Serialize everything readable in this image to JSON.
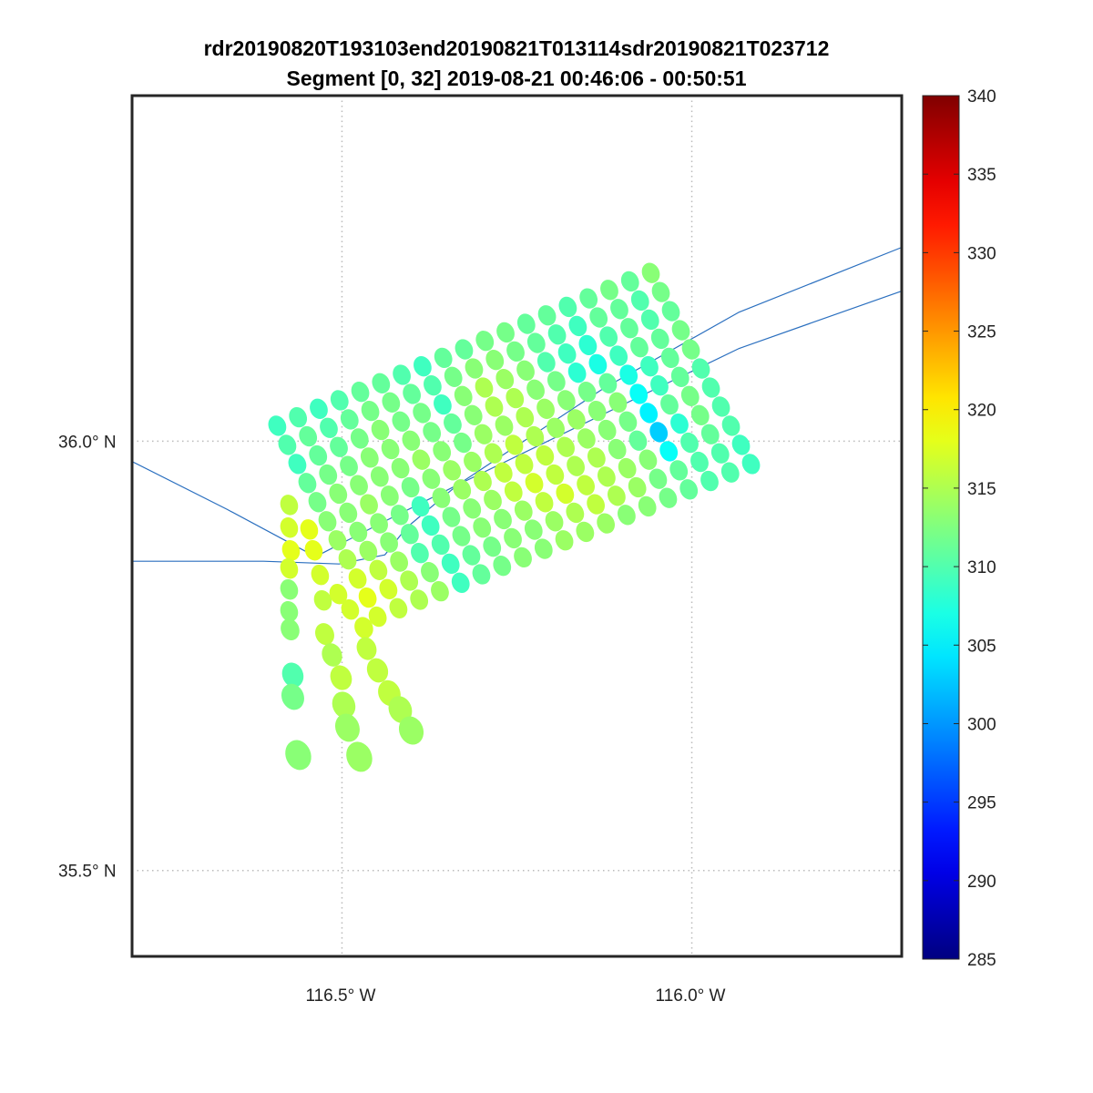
{
  "chart_data": {
    "type": "scatter",
    "title": [
      "rdr20190820T193103end20190821T013114sdr20190821T023712",
      "Segment [0, 32] 2019-08-21 00:46:06 - 00:50:51"
    ],
    "xlabel": "",
    "ylabel": "",
    "xlim": [
      -116.8,
      -115.7
    ],
    "ylim": [
      35.4,
      36.4025
    ],
    "grid": true,
    "x_ticks": [
      {
        "value": -116.5,
        "label": "116.5° W"
      },
      {
        "value": -116.0,
        "label": "116.0° W"
      }
    ],
    "y_ticks": [
      {
        "value": 36.0,
        "label": "36.0° N"
      },
      {
        "value": 35.5,
        "label": "35.5° N"
      }
    ],
    "colorbar": {
      "colormap": "jet",
      "range": [
        285,
        340
      ],
      "ticks": [
        "285",
        "290",
        "295",
        "300",
        "305",
        "310",
        "315",
        "320",
        "325",
        "330",
        "335",
        "340"
      ]
    },
    "footprint_grid": {
      "corners": {
        "top_left": [
          -116.5925,
          36.018
        ],
        "top_right": [
          -116.0586,
          36.196
        ],
        "bottom_left": [
          -116.449,
          35.7956
        ],
        "bottom_right": [
          -115.9154,
          35.9735
        ]
      },
      "values": [
        [
          309,
          310,
          309,
          310,
          311,
          311,
          310,
          309,
          311,
          311,
          312,
          312,
          311,
          311,
          310,
          311,
          312,
          311,
          313
        ],
        [
          310,
          311,
          310,
          311,
          312,
          312,
          311,
          310,
          312,
          313,
          313,
          312,
          311,
          310,
          309,
          311,
          311,
          310,
          312
        ],
        [
          309,
          311,
          311,
          312,
          313,
          312,
          312,
          309,
          313,
          315,
          314,
          313,
          310,
          309,
          308,
          310,
          311,
          310,
          311
        ],
        [
          311,
          312,
          312,
          313,
          313,
          313,
          312,
          311,
          313,
          315,
          315,
          313,
          312,
          308,
          307,
          309,
          311,
          311,
          312
        ],
        [
          312,
          313,
          313,
          313,
          313,
          314,
          313,
          312,
          314,
          314,
          315,
          314,
          313,
          312,
          311,
          307,
          309,
          311,
          312
        ],
        [
          313,
          313,
          314,
          313,
          312,
          313,
          314,
          314,
          315,
          316,
          315,
          314,
          314,
          313,
          313,
          306,
          309,
          311,
          310
        ],
        [
          314,
          313,
          313,
          312,
          309,
          313,
          314,
          315,
          316,
          316,
          316,
          315,
          314,
          313,
          312,
          305,
          311,
          312,
          310
        ],
        [
          315,
          314,
          313,
          311,
          309,
          312,
          313,
          314,
          316,
          317,
          316,
          315,
          315,
          313,
          311,
          303,
          308,
          312,
          310
        ],
        [
          317,
          316,
          314,
          310,
          310,
          312,
          313,
          313,
          314,
          316,
          317,
          316,
          315,
          314,
          313,
          306,
          310,
          311,
          310
        ],
        [
          318,
          317,
          315,
          313,
          309,
          311,
          312,
          313,
          313,
          314,
          315,
          316,
          315,
          314,
          312,
          311,
          310,
          310,
          309
        ],
        [
          317,
          316,
          315,
          314,
          309,
          311,
          312,
          313,
          313,
          314,
          314,
          314,
          313,
          313,
          312,
          311,
          310,
          310,
          309
        ]
      ]
    },
    "extra_points": [
      [
        -116.5755,
        35.9258,
        316
      ],
      [
        -116.5755,
        35.8994,
        317
      ],
      [
        -116.5729,
        35.8729,
        318
      ],
      [
        -116.5755,
        35.8517,
        317
      ],
      [
        -116.5755,
        35.8273,
        313
      ],
      [
        -116.5755,
        35.8019,
        313
      ],
      [
        -116.5742,
        35.7807,
        313
      ],
      [
        -116.5703,
        35.7278,
        310
      ],
      [
        -116.5703,
        35.7023,
        312
      ],
      [
        -116.5625,
        35.6345,
        313
      ],
      [
        -116.5469,
        35.8972,
        318
      ],
      [
        -116.5404,
        35.8729,
        318
      ],
      [
        -116.5313,
        35.8443,
        317
      ],
      [
        -116.5273,
        35.8146,
        316
      ],
      [
        -116.5247,
        35.7754,
        316
      ],
      [
        -116.5143,
        35.7511,
        315
      ],
      [
        -116.5013,
        35.7246,
        316
      ],
      [
        -116.4974,
        35.6928,
        315
      ],
      [
        -116.4922,
        35.6663,
        314
      ],
      [
        -116.4753,
        35.6324,
        314
      ],
      [
        -116.5052,
        35.822,
        317
      ],
      [
        -116.4883,
        35.804,
        317
      ],
      [
        -116.4688,
        35.7828,
        317
      ],
      [
        -116.4648,
        35.7585,
        316
      ],
      [
        -116.4492,
        35.7331,
        316
      ],
      [
        -116.4323,
        35.7066,
        316
      ],
      [
        -116.4167,
        35.6875,
        315
      ],
      [
        -116.401,
        35.6631,
        314
      ]
    ],
    "lines": [
      {
        "name": "line-a",
        "color": "#2a6fbf",
        "points": [
          [
            -116.8008,
            35.8602
          ],
          [
            -116.612,
            35.8602
          ],
          [
            -116.5039,
            35.857
          ],
          [
            -116.4388,
            35.8676
          ],
          [
            -116.4076,
            35.8994
          ],
          [
            -116.3346,
            35.9492
          ],
          [
            -116.1263,
            36.0614
          ],
          [
            -115.9323,
            36.1504
          ],
          [
            -115.7005,
            36.2256
          ]
        ]
      },
      {
        "name": "line-b",
        "color": "#2a6fbf",
        "points": [
          [
            -116.8008,
            35.9767
          ],
          [
            -116.6641,
            35.9206
          ],
          [
            -116.5378,
            35.8655
          ],
          [
            -116.4388,
            35.9068
          ],
          [
            -116.3346,
            35.9492
          ],
          [
            -116.013,
            36.0763
          ],
          [
            -115.9323,
            36.1081
          ],
          [
            -115.7005,
            36.1748
          ]
        ]
      }
    ]
  }
}
